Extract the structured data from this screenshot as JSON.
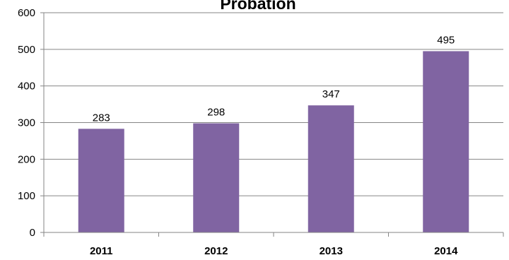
{
  "chart_data": {
    "type": "bar",
    "title": "Probation",
    "categories": [
      "2011",
      "2012",
      "2013",
      "2014"
    ],
    "values": [
      283,
      298,
      347,
      495
    ],
    "data_labels": [
      "283",
      "298",
      "347",
      "495"
    ],
    "ylim": [
      0,
      600
    ],
    "yticks": [
      0,
      100,
      200,
      300,
      400,
      500,
      600
    ],
    "ytick_labels": [
      "0",
      "100",
      "200",
      "300",
      "400",
      "500",
      "600"
    ],
    "xlabel": "",
    "ylabel": "",
    "grid": true,
    "legend": "none",
    "colors": {
      "bar": "#8064a2",
      "grid": "#868686",
      "axis": "#868686"
    }
  }
}
